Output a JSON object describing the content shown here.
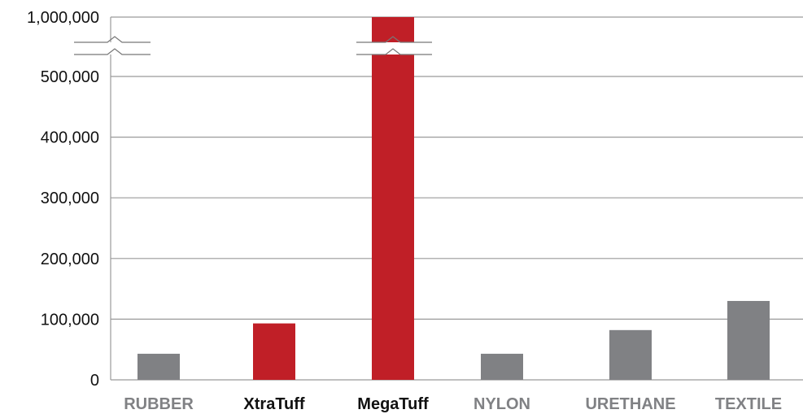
{
  "chart_data": {
    "type": "bar",
    "title": "",
    "xlabel": "",
    "ylabel": "",
    "categories": [
      "RUBBER",
      "XtraTuff",
      "MegaTuff",
      "NYLON",
      "URETHANE",
      "TEXTILE"
    ],
    "values": [
      43000,
      93000,
      1000000,
      43000,
      82000,
      130000
    ],
    "y_ticks": [
      "0",
      "100,000",
      "200,000",
      "300,000",
      "400,000",
      "500,000",
      "1,000,000"
    ],
    "y_tick_values": [
      0,
      100000,
      200000,
      300000,
      400000,
      500000,
      1000000
    ],
    "ylim": [
      0,
      1000000
    ],
    "axis_break": [
      500000,
      1000000
    ],
    "grid": true,
    "colors": {
      "highlight": "#c01f27",
      "default": "#808184",
      "highlight_label": "#111111",
      "default_label": "#808184",
      "grid": "#9a9a9a"
    },
    "highlighted": [
      "XtraTuff",
      "MegaTuff"
    ]
  }
}
